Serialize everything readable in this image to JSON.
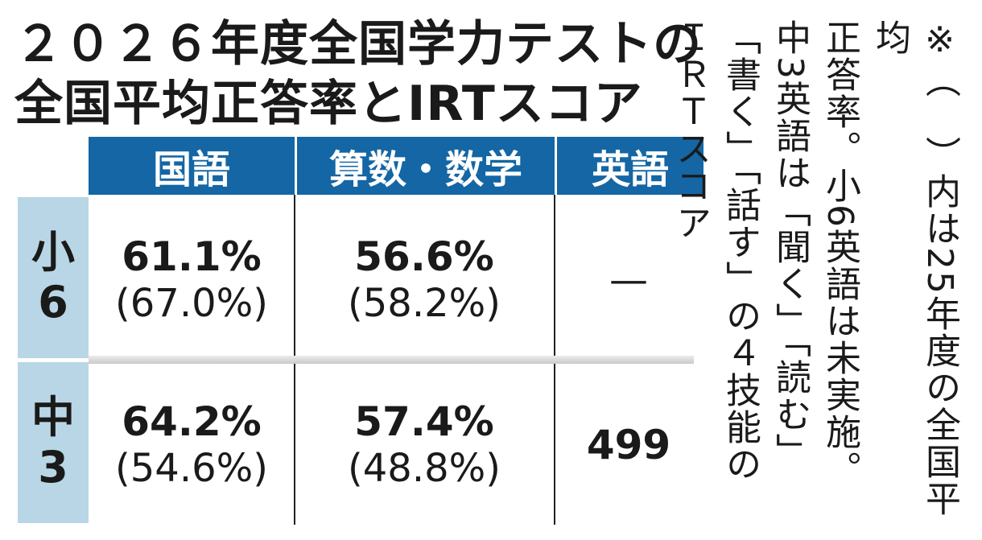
{
  "title": {
    "line1": "２０２６年度全国学力テストの",
    "line2": "全国平均正答率とIRTスコア"
  },
  "table": {
    "columns": [
      "国語",
      "算数・数学",
      "英語"
    ],
    "rows": [
      {
        "label_top": "小",
        "label_bottom": "6",
        "kokugo_main": "61.1%",
        "kokugo_prev": "(67.0%)",
        "math_main": "56.6%",
        "math_prev": "(58.2%)",
        "english": "—"
      },
      {
        "label_top": "中",
        "label_bottom": "3",
        "kokugo_main": "64.2%",
        "kokugo_prev": "(54.6%)",
        "math_main": "57.4%",
        "math_prev": "(48.8%)",
        "english": "499"
      }
    ]
  },
  "note": {
    "line1": "※（　）内は25年度の全国平均",
    "line2": "正答率。小6英語は未実施。",
    "line3": "中3英語は「聞く」「読む」",
    "line4": "「書く」「話す」の４技能の",
    "line5": "ＩＲＴスコア"
  },
  "colors": {
    "header_bg": "#1466a4",
    "row_label_bg": "#b9d6e6"
  }
}
